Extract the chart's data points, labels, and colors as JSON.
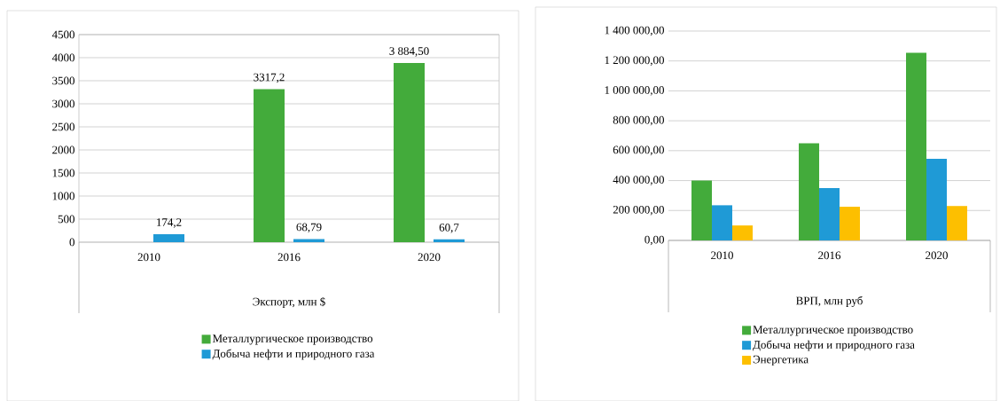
{
  "chart_data": [
    {
      "type": "bar",
      "categories": [
        "2010",
        "2016",
        "2020"
      ],
      "xlabel": "Экспорт, млн $",
      "ylim": [
        0,
        4500
      ],
      "yticks": [
        0,
        500,
        1000,
        1500,
        2000,
        2500,
        3000,
        3500,
        4000,
        4500
      ],
      "grid": "y",
      "legend": "bottom",
      "series": [
        {
          "name": "Металлургическое производство",
          "color": "#43ab3b",
          "values": [
            null,
            3317.2,
            3884.5
          ],
          "value_labels": [
            null,
            "3317,2",
            "3 884,50"
          ]
        },
        {
          "name": "Добыча нефти и природного газа",
          "color": "#1f9ad6",
          "values": [
            174.2,
            68.79,
            60.7
          ],
          "value_labels": [
            "174,2",
            "68,79",
            "60,7"
          ]
        }
      ]
    },
    {
      "type": "bar",
      "categories": [
        "2010",
        "2016",
        "2020"
      ],
      "xlabel": "ВРП, млн руб",
      "ylim": [
        0,
        1400000
      ],
      "yticks": [
        {
          "value": 0,
          "label": "0,00"
        },
        {
          "value": 200000,
          "label": "200 000,00"
        },
        {
          "value": 400000,
          "label": "400 000,00"
        },
        {
          "value": 600000,
          "label": "600 000,00"
        },
        {
          "value": 800000,
          "label": "800 000,00"
        },
        {
          "value": 1000000,
          "label": "1 000 000,00"
        },
        {
          "value": 1200000,
          "label": "1 200 000,00"
        },
        {
          "value": 1400000,
          "label": "1 400 000,00"
        }
      ],
      "grid": "y",
      "legend": "bottom",
      "series": [
        {
          "name": "Металлургическое производство",
          "color": "#43ab3b",
          "values": [
            400000,
            650000,
            1255000
          ]
        },
        {
          "name": "Добыча нефти и природного газа",
          "color": "#1f9ad6",
          "values": [
            235000,
            350000,
            545000
          ]
        },
        {
          "name": "Энергетика",
          "color": "#fdbf00",
          "values": [
            100000,
            225000,
            230000
          ]
        }
      ]
    }
  ]
}
